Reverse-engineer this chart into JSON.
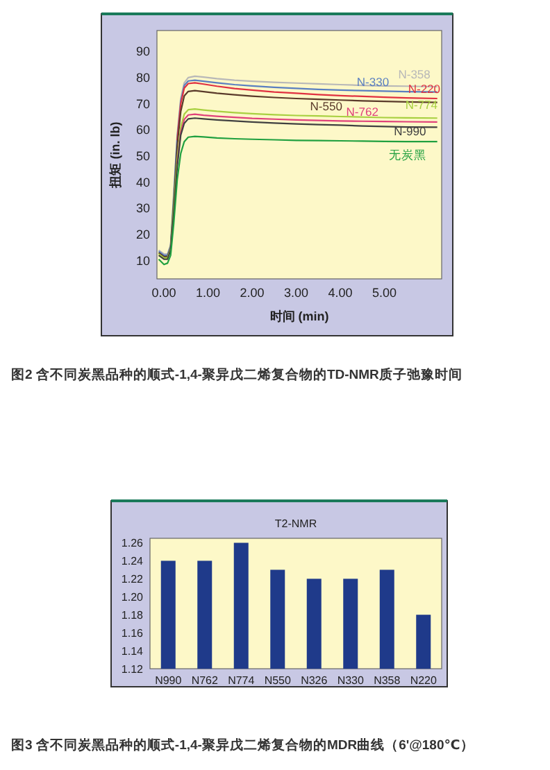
{
  "chart_data": [
    {
      "type": "line",
      "xlabel": "时间 (min)",
      "ylabel": "扭矩 (in. lb)",
      "xlim": [
        -0.16,
        6.3
      ],
      "ylim": [
        3,
        98
      ],
      "xticks": [
        {
          "value": 0,
          "label": "0.00"
        },
        {
          "value": 1,
          "label": "1.00"
        },
        {
          "value": 2,
          "label": "2.00"
        },
        {
          "value": 3,
          "label": "3.00"
        },
        {
          "value": 4,
          "label": "4.00"
        },
        {
          "value": 5,
          "label": "5.00"
        }
      ],
      "yticks": [
        10,
        20,
        30,
        40,
        50,
        60,
        70,
        80,
        90
      ],
      "grid": false,
      "marker": "none",
      "line_style": "solid",
      "x": [
        -0.12,
        0,
        0.08,
        0.15,
        0.22,
        0.3,
        0.38,
        0.46,
        0.55,
        0.7,
        0.9,
        1.2,
        1.6,
        2,
        2.5,
        3,
        3.5,
        4,
        4.5,
        5,
        5.5,
        6.2
      ],
      "series": [
        {
          "name": "N-358",
          "color": "#b8b8b8",
          "values": [
            14,
            12.5,
            12.5,
            16,
            35,
            58,
            72,
            78,
            80,
            80.5,
            80.2,
            79.6,
            79,
            78.6,
            78.2,
            77.9,
            77.6,
            77.3,
            77,
            76.8,
            76.7,
            76.5
          ]
        },
        {
          "name": "N-330",
          "color": "#5a7fc0",
          "values": [
            13.5,
            12,
            12,
            15.5,
            34,
            57,
            71,
            77,
            78.7,
            79,
            78.6,
            78,
            77.3,
            76.8,
            76.3,
            75.9,
            75.5,
            75.2,
            75,
            74.8,
            74.6,
            74.5
          ]
        },
        {
          "name": "N-220",
          "color": "#e03040",
          "values": [
            null,
            null,
            null,
            null,
            null,
            56,
            70,
            76,
            77.7,
            78,
            77.5,
            76.7,
            75.8,
            75.2,
            74.5,
            74,
            73.5,
            73.1,
            72.8,
            72.5,
            72.2,
            72
          ]
        },
        {
          "name": "N-550",
          "color": "#5a3a2a",
          "values": [
            13,
            11.5,
            11.5,
            15,
            32,
            54,
            67,
            73,
            74.7,
            75,
            74.6,
            74,
            73.4,
            72.9,
            72.4,
            72,
            71.7,
            71.4,
            71.1,
            70.9,
            70.7,
            70.5
          ]
        },
        {
          "name": "N-774",
          "color": "#a8d040",
          "values": [
            12.5,
            11,
            11,
            14.5,
            30,
            49,
            61,
            66,
            67.7,
            68,
            67.6,
            67.1,
            66.6,
            66.2,
            65.8,
            65.5,
            65.3,
            65.1,
            64.9,
            64.7,
            64.6,
            64.5
          ]
        },
        {
          "name": "N-762",
          "color": "#e0407a",
          "values": [
            null,
            null,
            null,
            null,
            null,
            47,
            59,
            64,
            65.7,
            66,
            65.6,
            65.2,
            64.8,
            64.4,
            64.1,
            63.8,
            63.6,
            63.4,
            63.3,
            63.2,
            63.1,
            63
          ]
        },
        {
          "name": "N-990",
          "color": "#404040",
          "values": [
            12,
            10.5,
            10.5,
            14,
            28,
            46,
            58,
            62.5,
            64.2,
            64.5,
            64.2,
            63.8,
            63.4,
            63,
            62.6,
            62.3,
            62,
            61.8,
            61.5,
            61.3,
            61.1,
            61
          ]
        },
        {
          "name": "无炭黑",
          "color": "#20a040",
          "values": [
            10.5,
            8.5,
            9,
            12,
            24,
            41,
            51,
            55.5,
            57.2,
            57.5,
            57.3,
            56.9,
            56.6,
            56.4,
            56.2,
            56,
            55.9,
            55.8,
            55.7,
            55.6,
            55.5,
            55.5
          ]
        }
      ],
      "annotations": [
        "图2  含不同炭黑品种的顺式-1,4-聚异戊二烯复合物的TD-NMR质子弛豫时间"
      ]
    },
    {
      "type": "bar",
      "title": "T2-NMR",
      "categories": [
        "N990",
        "N762",
        "N774",
        "N550",
        "N326",
        "N330",
        "N358",
        "N220"
      ],
      "values": [
        1.24,
        1.24,
        1.26,
        1.23,
        1.22,
        1.22,
        1.23,
        1.18
      ],
      "color": "#1f3a8a",
      "ylim": [
        1.12,
        1.265
      ],
      "yticks": [
        {
          "value": 1.12,
          "label": "1.12"
        },
        {
          "value": 1.14,
          "label": "1.14"
        },
        {
          "value": 1.16,
          "label": "1.16"
        },
        {
          "value": 1.18,
          "label": "1.18"
        },
        {
          "value": 1.2,
          "label": "1.20"
        },
        {
          "value": 1.22,
          "label": "1.22"
        },
        {
          "value": 1.24,
          "label": "1.24"
        },
        {
          "value": 1.26,
          "label": "1.26"
        }
      ],
      "grid": false,
      "annotations": [
        "图3  含不同炭黑品种的顺式-1,4-聚异戊二烯复合物的MDR曲线（6'@180℃）"
      ]
    }
  ]
}
